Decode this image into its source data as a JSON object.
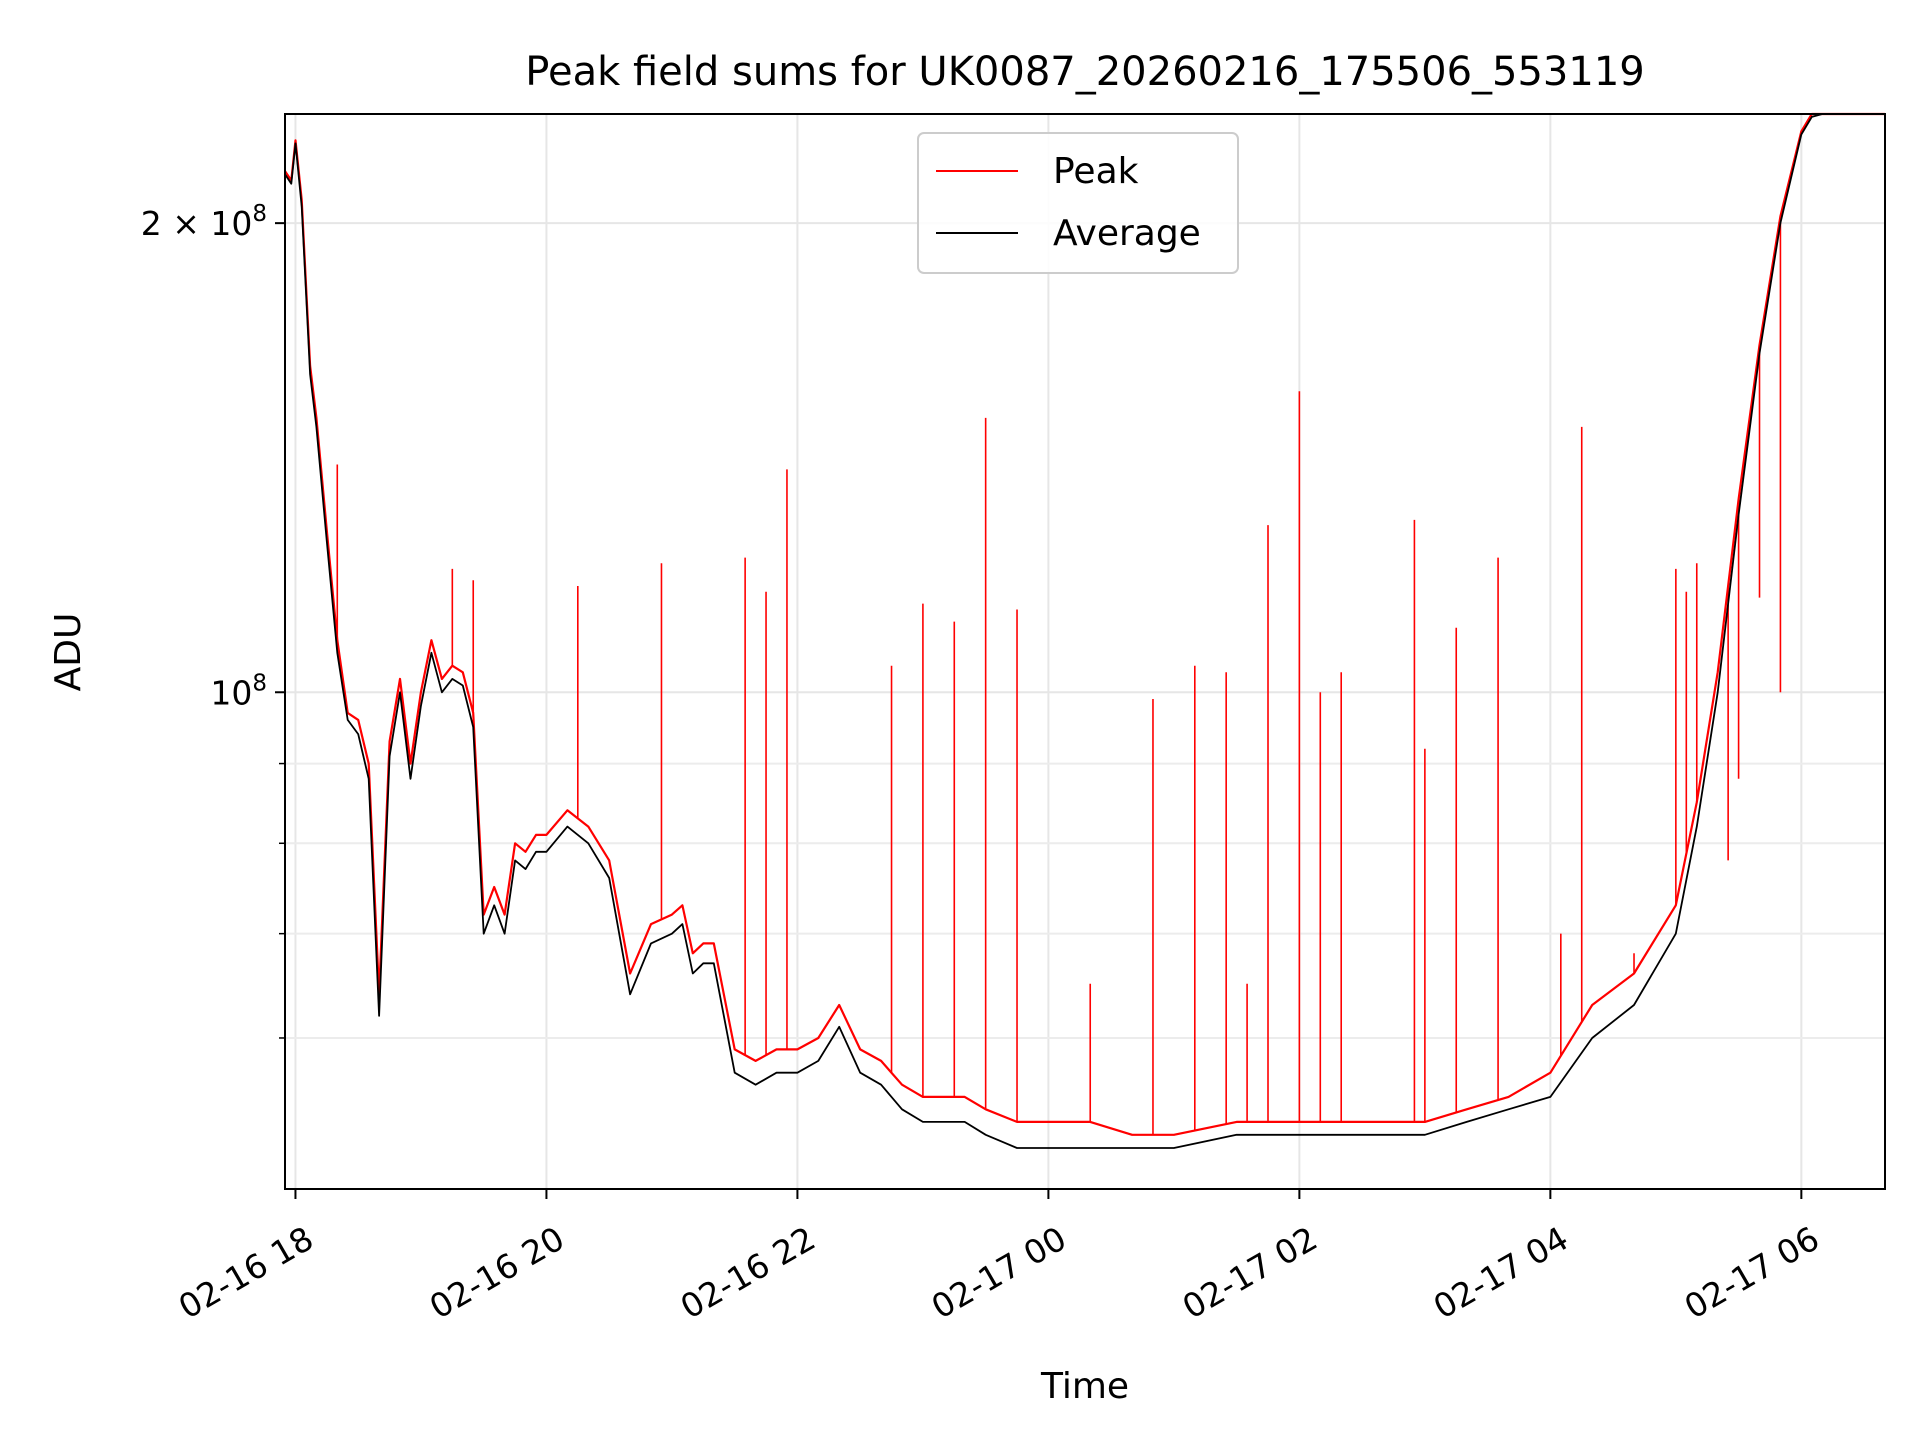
{
  "chart_data": {
    "type": "line",
    "title": "Peak field sums for UK0087_20260216_175506_553119",
    "xlabel": "Time",
    "ylabel": "ADU",
    "yscale": "log",
    "grid": true,
    "legend_placement": "top-center",
    "xlim": [
      "2026-02-16 17:55",
      "2026-02-17 06:40"
    ],
    "ylim": [
      48000000,
      235000000
    ],
    "x_ticks": [
      {
        "value": "2026-02-16 18:00",
        "label": "02-16 18"
      },
      {
        "value": "2026-02-16 20:00",
        "label": "02-16 20"
      },
      {
        "value": "2026-02-16 22:00",
        "label": "02-16 22"
      },
      {
        "value": "2026-02-17 00:00",
        "label": "02-17 00"
      },
      {
        "value": "2026-02-17 02:00",
        "label": "02-17 02"
      },
      {
        "value": "2026-02-17 04:00",
        "label": "02-17 04"
      },
      {
        "value": "2026-02-17 06:00",
        "label": "02-17 06"
      }
    ],
    "y_major_ticks": [
      {
        "value": 100000000,
        "base": "10",
        "exp": "8"
      },
      {
        "value": 200000000,
        "base": "2 × 10",
        "exp": "8"
      }
    ],
    "y_minor_ticks": [
      60000000,
      70000000,
      80000000,
      90000000
    ],
    "series": [
      {
        "name": "Average",
        "color": "#000000",
        "x": [
          "2026-02-16 17:55",
          "2026-02-16 17:58",
          "2026-02-16 18:00",
          "2026-02-16 18:03",
          "2026-02-16 18:07",
          "2026-02-16 18:10",
          "2026-02-16 18:15",
          "2026-02-16 18:20",
          "2026-02-16 18:25",
          "2026-02-16 18:30",
          "2026-02-16 18:35",
          "2026-02-16 18:40",
          "2026-02-16 18:45",
          "2026-02-16 18:50",
          "2026-02-16 18:55",
          "2026-02-16 19:00",
          "2026-02-16 19:05",
          "2026-02-16 19:10",
          "2026-02-16 19:15",
          "2026-02-16 19:20",
          "2026-02-16 19:25",
          "2026-02-16 19:30",
          "2026-02-16 19:35",
          "2026-02-16 19:40",
          "2026-02-16 19:45",
          "2026-02-16 19:50",
          "2026-02-16 19:55",
          "2026-02-16 20:00",
          "2026-02-16 20:10",
          "2026-02-16 20:20",
          "2026-02-16 20:30",
          "2026-02-16 20:40",
          "2026-02-16 20:50",
          "2026-02-16 21:00",
          "2026-02-16 21:05",
          "2026-02-16 21:10",
          "2026-02-16 21:15",
          "2026-02-16 21:20",
          "2026-02-16 21:30",
          "2026-02-16 21:40",
          "2026-02-16 21:50",
          "2026-02-16 22:00",
          "2026-02-16 22:10",
          "2026-02-16 22:20",
          "2026-02-16 22:30",
          "2026-02-16 22:40",
          "2026-02-16 22:50",
          "2026-02-16 23:00",
          "2026-02-16 23:10",
          "2026-02-16 23:20",
          "2026-02-16 23:30",
          "2026-02-16 23:45",
          "2026-02-17 00:00",
          "2026-02-17 00:20",
          "2026-02-17 00:40",
          "2026-02-17 00:50",
          "2026-02-17 01:00",
          "2026-02-17 01:30",
          "2026-02-17 02:00",
          "2026-02-17 02:20",
          "2026-02-17 02:40",
          "2026-02-17 03:00",
          "2026-02-17 03:20",
          "2026-02-17 03:40",
          "2026-02-17 04:00",
          "2026-02-17 04:20",
          "2026-02-17 04:40",
          "2026-02-17 05:00",
          "2026-02-17 05:10",
          "2026-02-17 05:20",
          "2026-02-17 05:30",
          "2026-02-17 05:40",
          "2026-02-17 05:50",
          "2026-02-17 06:00",
          "2026-02-17 06:05",
          "2026-02-17 06:10",
          "2026-02-17 06:15",
          "2026-02-17 06:20",
          "2026-02-17 06:25",
          "2026-02-17 06:30",
          "2026-02-17 06:35",
          "2026-02-17 06:40"
        ],
        "y": [
          215000000,
          212000000,
          225000000,
          205000000,
          160000000,
          148000000,
          125000000,
          106000000,
          96000000,
          94000000,
          88000000,
          62000000,
          91000000,
          100000000,
          88000000,
          98000000,
          106000000,
          100000000,
          102000000,
          101000000,
          95000000,
          70000000,
          73000000,
          70000000,
          78000000,
          77000000,
          79000000,
          79000000,
          82000000,
          80000000,
          76000000,
          64000000,
          69000000,
          70000000,
          71000000,
          66000000,
          67000000,
          67000000,
          57000000,
          56000000,
          57000000,
          57000000,
          58000000,
          61000000,
          57000000,
          56000000,
          54000000,
          53000000,
          53000000,
          53000000,
          52000000,
          51000000,
          51000000,
          51000000,
          51000000,
          51000000,
          51000000,
          52000000,
          52000000,
          52000000,
          52000000,
          52000000,
          53000000,
          54000000,
          55000000,
          60000000,
          63000000,
          70000000,
          82000000,
          100000000,
          130000000,
          165000000,
          200000000,
          228000000,
          234000000,
          235000000,
          235000000,
          235000000,
          235000000,
          235000000,
          235000000,
          235000000
        ]
      },
      {
        "name": "Peak",
        "color": "#ff0000",
        "x": [
          "2026-02-16 17:55",
          "2026-02-16 17:58",
          "2026-02-16 18:00",
          "2026-02-16 18:03",
          "2026-02-16 18:07",
          "2026-02-16 18:10",
          "2026-02-16 18:15",
          "2026-02-16 18:20",
          "2026-02-16 18:25",
          "2026-02-16 18:30",
          "2026-02-16 18:35",
          "2026-02-16 18:40",
          "2026-02-16 18:45",
          "2026-02-16 18:50",
          "2026-02-16 18:55",
          "2026-02-16 19:00",
          "2026-02-16 19:05",
          "2026-02-16 19:10",
          "2026-02-16 19:15",
          "2026-02-16 19:20",
          "2026-02-16 19:25",
          "2026-02-16 19:30",
          "2026-02-16 19:35",
          "2026-02-16 19:40",
          "2026-02-16 19:45",
          "2026-02-16 19:50",
          "2026-02-16 19:55",
          "2026-02-16 20:00",
          "2026-02-16 20:10",
          "2026-02-16 20:20",
          "2026-02-16 20:30",
          "2026-02-16 20:40",
          "2026-02-16 20:50",
          "2026-02-16 21:00",
          "2026-02-16 21:05",
          "2026-02-16 21:10",
          "2026-02-16 21:15",
          "2026-02-16 21:20",
          "2026-02-16 21:30",
          "2026-02-16 21:40",
          "2026-02-16 21:50",
          "2026-02-16 22:00",
          "2026-02-16 22:10",
          "2026-02-16 22:20",
          "2026-02-16 22:30",
          "2026-02-16 22:40",
          "2026-02-16 22:50",
          "2026-02-16 23:00",
          "2026-02-16 23:10",
          "2026-02-16 23:20",
          "2026-02-16 23:30",
          "2026-02-16 23:45",
          "2026-02-17 00:00",
          "2026-02-17 00:20",
          "2026-02-17 00:40",
          "2026-02-17 00:50",
          "2026-02-17 01:00",
          "2026-02-17 01:30",
          "2026-02-17 02:00",
          "2026-02-17 02:20",
          "2026-02-17 02:40",
          "2026-02-17 03:00",
          "2026-02-17 03:20",
          "2026-02-17 03:40",
          "2026-02-17 04:00",
          "2026-02-17 04:20",
          "2026-02-17 04:40",
          "2026-02-17 05:00",
          "2026-02-17 05:10",
          "2026-02-17 05:20",
          "2026-02-17 05:30",
          "2026-02-17 05:40",
          "2026-02-17 05:50",
          "2026-02-17 06:00",
          "2026-02-17 06:05",
          "2026-02-17 06:10",
          "2026-02-17 06:15",
          "2026-02-17 06:20",
          "2026-02-17 06:25",
          "2026-02-17 06:30",
          "2026-02-17 06:35",
          "2026-02-17 06:40"
        ],
        "y": [
          216000000,
          213000000,
          226000000,
          207000000,
          162000000,
          150000000,
          127000000,
          108000000,
          97000000,
          96000000,
          90000000,
          64000000,
          93000000,
          102000000,
          90000000,
          100000000,
          108000000,
          102000000,
          104000000,
          103000000,
          97000000,
          72000000,
          75000000,
          72000000,
          80000000,
          79000000,
          81000000,
          81000000,
          84000000,
          82000000,
          78000000,
          66000000,
          71000000,
          72000000,
          73000000,
          68000000,
          69000000,
          69000000,
          59000000,
          58000000,
          59000000,
          59000000,
          60000000,
          63000000,
          59000000,
          58000000,
          56000000,
          55000000,
          55000000,
          55000000,
          54000000,
          53000000,
          53000000,
          53000000,
          52000000,
          52000000,
          52000000,
          53000000,
          53000000,
          53000000,
          53000000,
          53000000,
          54000000,
          55000000,
          57000000,
          63000000,
          66000000,
          73000000,
          85000000,
          103000000,
          133000000,
          167000000,
          202000000,
          229000000,
          235000000,
          235000000,
          235000000,
          235000000,
          235000000,
          235000000,
          235000000,
          235000000
        ],
        "spikes": [
          {
            "x": "2026-02-16 18:20",
            "y": 140000000
          },
          {
            "x": "2026-02-16 19:15",
            "y": 120000000
          },
          {
            "x": "2026-02-16 19:25",
            "y": 118000000
          },
          {
            "x": "2026-02-16 20:15",
            "y": 117000000
          },
          {
            "x": "2026-02-16 20:55",
            "y": 121000000
          },
          {
            "x": "2026-02-16 21:35",
            "y": 122000000
          },
          {
            "x": "2026-02-16 21:45",
            "y": 116000000
          },
          {
            "x": "2026-02-16 21:55",
            "y": 139000000
          },
          {
            "x": "2026-02-16 22:45",
            "y": 104000000
          },
          {
            "x": "2026-02-16 23:00",
            "y": 114000000
          },
          {
            "x": "2026-02-16 23:15",
            "y": 111000000
          },
          {
            "x": "2026-02-16 23:30",
            "y": 150000000
          },
          {
            "x": "2026-02-16 23:45",
            "y": 113000000
          },
          {
            "x": "2026-02-17 00:20",
            "y": 65000000
          },
          {
            "x": "2026-02-17 00:50",
            "y": 99000000
          },
          {
            "x": "2026-02-17 01:10",
            "y": 104000000
          },
          {
            "x": "2026-02-17 01:25",
            "y": 103000000
          },
          {
            "x": "2026-02-17 01:35",
            "y": 65000000
          },
          {
            "x": "2026-02-17 01:45",
            "y": 128000000
          },
          {
            "x": "2026-02-17 02:00",
            "y": 156000000
          },
          {
            "x": "2026-02-17 02:10",
            "y": 100000000
          },
          {
            "x": "2026-02-17 02:20",
            "y": 103000000
          },
          {
            "x": "2026-02-17 02:55",
            "y": 129000000
          },
          {
            "x": "2026-02-17 03:00",
            "y": 92000000
          },
          {
            "x": "2026-02-17 03:15",
            "y": 110000000
          },
          {
            "x": "2026-02-17 03:35",
            "y": 122000000
          },
          {
            "x": "2026-02-17 04:05",
            "y": 70000000
          },
          {
            "x": "2026-02-17 04:15",
            "y": 148000000
          },
          {
            "x": "2026-02-17 04:40",
            "y": 68000000
          },
          {
            "x": "2026-02-17 05:00",
            "y": 120000000
          },
          {
            "x": "2026-02-17 05:05",
            "y": 116000000
          },
          {
            "x": "2026-02-17 05:10",
            "y": 121000000
          },
          {
            "x": "2026-02-17 05:25",
            "y": 78000000
          },
          {
            "x": "2026-02-17 05:30",
            "y": 88000000
          },
          {
            "x": "2026-02-17 05:40",
            "y": 115000000
          },
          {
            "x": "2026-02-17 05:50",
            "y": 100000000
          }
        ]
      }
    ],
    "legend": [
      {
        "name": "Peak",
        "color": "#ff0000"
      },
      {
        "name": "Average",
        "color": "#000000"
      }
    ]
  }
}
